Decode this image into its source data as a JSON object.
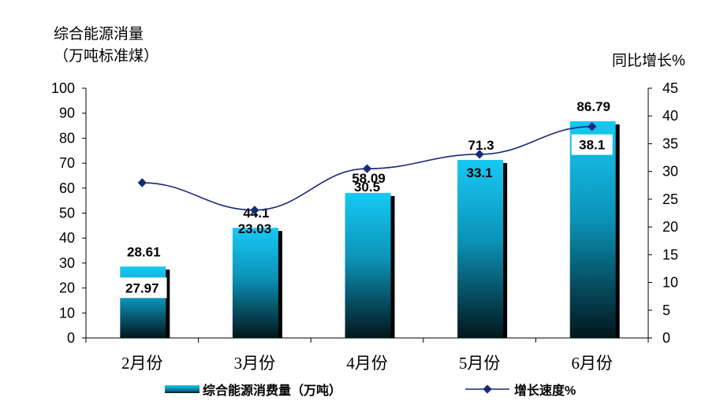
{
  "chart_data": {
    "type": "bar+line",
    "categories": [
      "2月份",
      "3月份",
      "4月份",
      "5月份",
      "6月份"
    ],
    "series": [
      {
        "name": "综合能源消费量（万吨）",
        "type": "bar",
        "axis": "left",
        "values": [
          28.61,
          44.1,
          58.09,
          71.3,
          86.79
        ],
        "value_labels": [
          "28.61",
          "44.1",
          "58.09",
          "71.3",
          "86.79"
        ],
        "color": "#17c9f4"
      },
      {
        "name": "增长速度%",
        "type": "line",
        "axis": "right",
        "values": [
          27.97,
          23.03,
          30.5,
          33.1,
          38.1
        ],
        "value_labels": [
          "27.97",
          "23.03",
          "30.5",
          "33.1",
          "38.1"
        ],
        "color": "#1a2a7a"
      }
    ],
    "y_left": {
      "label_lines": [
        "综合能源消量",
        "（万吨标准煤）"
      ],
      "ylim": [
        0,
        100
      ],
      "ticks": [
        "0",
        "10",
        "20",
        "30",
        "40",
        "50",
        "60",
        "70",
        "80",
        "90",
        "100"
      ]
    },
    "y_right": {
      "label": "同比增长%",
      "ylim": [
        0,
        45
      ],
      "ticks": [
        "0",
        "5",
        "10",
        "15",
        "20",
        "25",
        "30",
        "35",
        "40",
        "45"
      ]
    },
    "grid": false,
    "legend_position": "bottom"
  }
}
